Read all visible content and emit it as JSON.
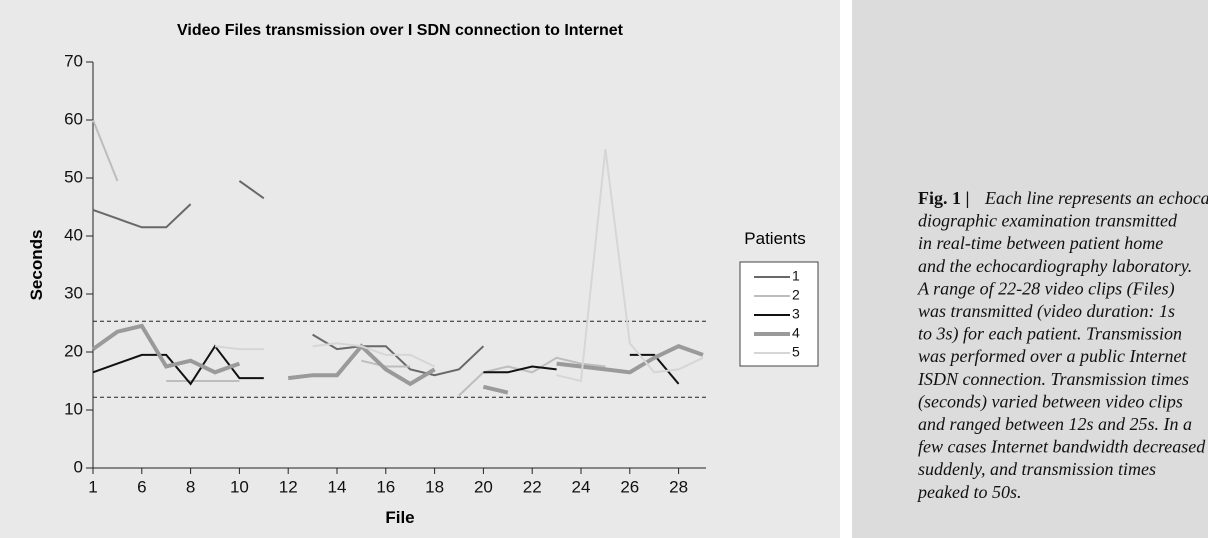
{
  "chart_data": {
    "type": "line",
    "title": "Video Files transmission over I SDN connection to Internet",
    "xlabel": "File",
    "ylabel": "Seconds",
    "categories": [
      "1",
      null,
      "6",
      null,
      "8",
      null,
      "10",
      null,
      "12",
      null,
      "14",
      null,
      "16",
      null,
      "18",
      null,
      "20",
      null,
      "22",
      null,
      "24",
      null,
      "26",
      null,
      "28",
      null
    ],
    "ylim": [
      0,
      70
    ],
    "yticks": [
      0,
      10,
      20,
      30,
      40,
      50,
      60,
      70
    ],
    "hlines": [
      25.3,
      12.2
    ],
    "legend_title": "Patients",
    "legend": "right",
    "series": [
      {
        "name": "1",
        "color": "#686868",
        "width": 2,
        "values": [
          44.5,
          43,
          41.5,
          41.5,
          45.5,
          null,
          49.5,
          46.5,
          null,
          23,
          20.5,
          21,
          21,
          17,
          16,
          17,
          21,
          null,
          null,
          null,
          null,
          null,
          null,
          null,
          null,
          null
        ]
      },
      {
        "name": "2",
        "color": "#bdbdbd",
        "width": 2,
        "values": [
          60,
          49.5,
          null,
          15,
          15,
          15,
          15,
          null,
          null,
          null,
          null,
          18.5,
          17.5,
          17.5,
          null,
          12.5,
          16.5,
          17.5,
          16.5,
          19,
          18,
          17.5,
          null,
          null,
          null,
          null
        ]
      },
      {
        "name": "3",
        "color": "#111111",
        "width": 2,
        "values": [
          16.5,
          18,
          19.5,
          19.5,
          14.5,
          21,
          15.5,
          15.5,
          null,
          null,
          null,
          null,
          null,
          null,
          null,
          null,
          16.5,
          16.5,
          17.5,
          17,
          null,
          null,
          19.5,
          19.5,
          14.5,
          null
        ]
      },
      {
        "name": "4",
        "color": "#9a9a9a",
        "width": 4,
        "values": [
          20.5,
          23.5,
          24.5,
          17.5,
          18.5,
          16.5,
          18,
          null,
          15.5,
          16,
          16,
          21,
          17,
          14.5,
          17,
          null,
          14,
          13,
          null,
          18,
          17.5,
          17,
          16.5,
          19,
          21,
          19.5
        ]
      },
      {
        "name": "5",
        "color": "#d6d6d6",
        "width": 2,
        "values": [
          null,
          null,
          null,
          null,
          null,
          21,
          20.5,
          20.5,
          null,
          21,
          21.5,
          21,
          19.5,
          19.5,
          17.5,
          null,
          null,
          null,
          null,
          16,
          15,
          55,
          21.5,
          16.5,
          17,
          19
        ]
      }
    ]
  },
  "caption": {
    "label": "Fig. 1 |",
    "lines": [
      "Each line represents an echocar-",
      "diographic examination transmitted",
      "in real-time between patient home",
      "and the echocardiography laboratory.",
      "A range of 22-28 video clips (Files)",
      "was transmitted (video duration: 1s",
      "to 3s) for each patient. Transmission",
      "was performed over a public Internet",
      "ISDN connection. Transmission times",
      "(seconds) varied between video clips",
      "and ranged between 12s and 25s. In a",
      "few cases Internet bandwidth decreased",
      "suddenly, and transmission times",
      "peaked to 50s."
    ]
  }
}
